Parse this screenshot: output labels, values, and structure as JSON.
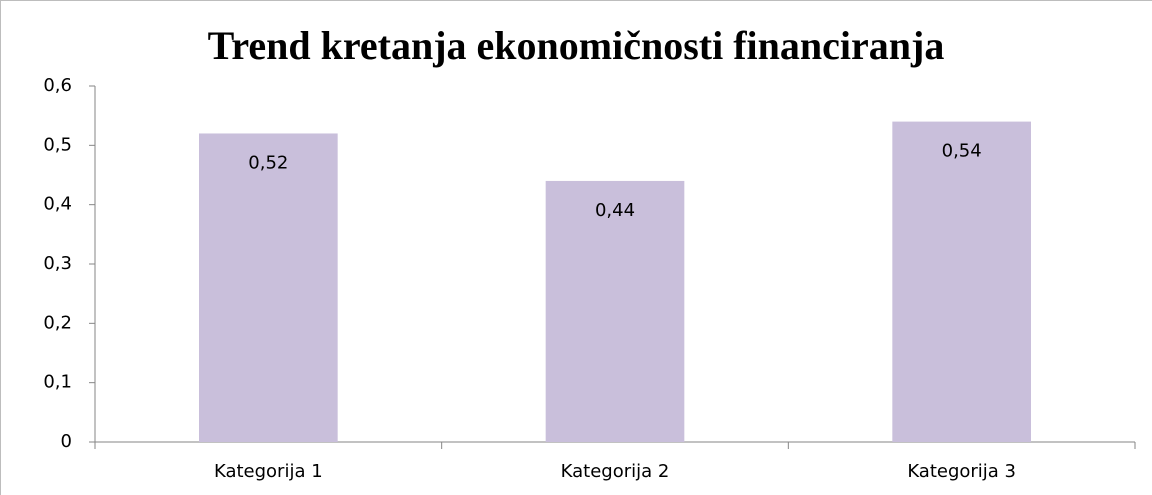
{
  "chart_data": {
    "type": "bar",
    "title": "Trend kretanja ekonomičnosti financiranja",
    "categories": [
      "Kategorija 1",
      "Kategorija 2",
      "Kategorija 3"
    ],
    "values": [
      0.52,
      0.44,
      0.54
    ],
    "value_labels": [
      "0,52",
      "0,44",
      "0,54"
    ],
    "color": "#c9bfdb",
    "ylim": [
      0,
      0.6
    ],
    "yticks": [
      0,
      {
        "value": 0.1,
        "label": "0,1"
      },
      {
        "value": 0.2,
        "label": "0,2"
      },
      {
        "value": 0.3,
        "label": "0,3"
      },
      {
        "value": 0.4,
        "label": "0,4"
      },
      {
        "value": 0.5,
        "label": "0,5"
      },
      {
        "value": 0.6,
        "label": "0,6"
      }
    ],
    "grid": false
  }
}
